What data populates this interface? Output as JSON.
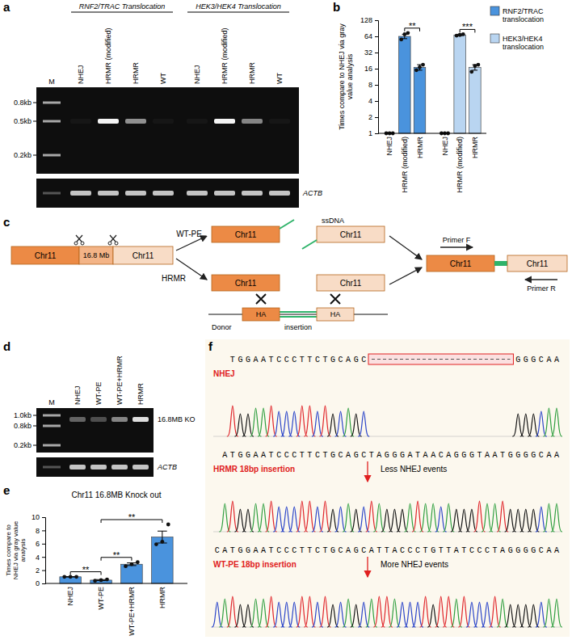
{
  "panel_labels": [
    "a",
    "b",
    "c",
    "d",
    "e",
    "f"
  ],
  "gels": [
    {
      "marker_label": "M",
      "marker_sizes": [
        "0.8kb",
        "0.5kb",
        "0.2kb"
      ],
      "groups": [
        {
          "label": "RNF2/TRAC Translocation",
          "lanes": [
            "NHEJ",
            "HRMR (modified)",
            "HRMR",
            "WT"
          ],
          "band_intensity": [
            0,
            1,
            0.55,
            0
          ]
        },
        {
          "label": "HEK3/HEK4 Translocation",
          "lanes": [
            "NHEJ",
            "HRMR (modified)",
            "HRMR",
            "WT"
          ],
          "band_intensity": [
            0,
            1,
            0.5,
            0
          ]
        }
      ],
      "control_label": "ACTB"
    },
    {
      "marker_label": "M",
      "marker_sizes": [
        "1.0kb",
        "0.8kb",
        "0.2kb"
      ],
      "groups": [
        {
          "lanes": [
            "NHEJ",
            "WT-PE",
            "WT-PE+HRMR",
            "HRMR"
          ],
          "band_intensity": [
            0.35,
            0.25,
            0.5,
            0.9
          ]
        }
      ],
      "band_label": "16.8MB KO",
      "control_label": "ACTB"
    }
  ],
  "chart_data": [
    {
      "type": "bar",
      "log": "y",
      "legend": "right",
      "y_label": "Times compare to NHEJ via gray value analysis",
      "categories": [
        "NHEJ",
        "HRMR (modified)",
        "HRMR"
      ],
      "series": [
        {
          "name": "RNF2/TRAC translocation",
          "color": "#4a93dd",
          "values": [
            1,
            64,
            17
          ],
          "errors": [
            0,
            6,
            2
          ],
          "points": [
            [
              1,
              1,
              1
            ],
            [
              56,
              70,
              74
            ],
            [
              15,
              17,
              19
            ]
          ]
        },
        {
          "name": "HEK3/HEK4 translocation",
          "color": "#b9d5f1",
          "values": [
            1,
            68,
            17
          ],
          "errors": [
            0,
            2,
            2
          ],
          "points": [
            [
              1,
              1,
              1
            ],
            [
              66,
              68,
              70
            ],
            [
              14,
              18,
              19
            ]
          ]
        }
      ],
      "ylim": [
        1,
        128
      ],
      "yticks": [
        1,
        2,
        4,
        8,
        16,
        32,
        64,
        128
      ],
      "significance": [
        {
          "series": 0,
          "from": 1,
          "to": 2,
          "label": "**"
        },
        {
          "series": 1,
          "from": 1,
          "to": 2,
          "label": "***"
        }
      ]
    },
    {
      "type": "bar",
      "title": "Chr11 16.8MB Knock out",
      "y_label": "Times compare to NHEJ via gray value analysis",
      "categories": [
        "NHEJ",
        "WT-PE",
        "WT-PE+HRMR",
        "HRMR"
      ],
      "values": [
        1,
        0.5,
        2.9,
        7
      ],
      "errors": [
        0.03,
        0.08,
        0.2,
        0.9
      ],
      "points": [
        [
          1,
          1,
          1
        ],
        [
          0.4,
          0.5,
          0.6
        ],
        [
          2.6,
          2.9,
          3.2
        ],
        [
          5.9,
          6.3,
          8.9
        ]
      ],
      "color": "#4a93dd",
      "ylim": [
        0,
        10
      ],
      "yticks": [
        0,
        2,
        4,
        6,
        8,
        10
      ],
      "significance": [
        {
          "from": 0,
          "to": 1,
          "label": "**"
        },
        {
          "from": 1,
          "to": 2,
          "label": "**"
        },
        {
          "from": 1,
          "to": 3,
          "label": "**"
        }
      ]
    }
  ],
  "diagram": {
    "source": {
      "left": "Chr11",
      "middle": "16.8 Mb",
      "right": "Chr11"
    },
    "routes": [
      {
        "label": "WT-PE",
        "left": "Chr11",
        "right": "Chr11",
        "ssdna": "ssDNA"
      },
      {
        "label": "HRMR",
        "left": "Chr11",
        "right": "Chr11",
        "homology_arms": [
          "HA",
          "HA"
        ],
        "insertion": "insertion",
        "donor": "Donor"
      }
    ],
    "product": {
      "left": "Chr11",
      "right": "Chr11",
      "primer_forward": "Primer F",
      "primer_reverse": "Primer R"
    }
  },
  "sequencing": {
    "traces": [
      {
        "label": "NHEJ",
        "before": "TGGAATCCCTTCTGCAGC",
        "after": "GGGCAA",
        "deletion": true
      },
      {
        "label": "HRMR 18bp insertion",
        "note": "Less NHEJ events",
        "before": "ATGGAATCCCTTCTGCAGC",
        "after": "TAGGGATAACAGGGTAATGGGGCAA",
        "insertion": true
      },
      {
        "label": "WT-PE 18bp insertion",
        "note": "More NHEJ events",
        "before": "CATGGAATCCCTTCTGCAGC",
        "after": "ATTACCCTGTTATCCCTAGGGGCAA",
        "insertion": true
      }
    ]
  }
}
